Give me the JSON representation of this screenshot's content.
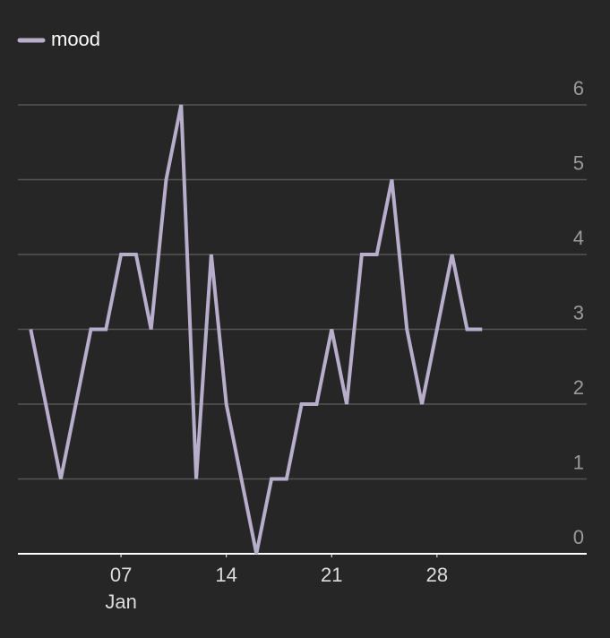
{
  "chart_data": {
    "type": "line",
    "x": [
      1,
      2,
      3,
      4,
      5,
      6,
      7,
      8,
      9,
      10,
      11,
      12,
      13,
      14,
      15,
      16,
      17,
      18,
      19,
      20,
      21,
      22,
      23,
      24,
      25,
      26,
      27,
      28,
      29,
      30,
      31
    ],
    "series": [
      {
        "name": "mood",
        "color": "#b6aecb",
        "values": [
          3,
          2,
          1,
          2,
          3,
          3,
          4,
          4,
          3,
          5,
          6,
          1,
          4,
          2,
          1,
          0,
          1,
          1,
          2,
          2,
          3,
          2,
          4,
          4,
          5,
          3,
          2,
          3,
          4,
          3,
          3
        ]
      }
    ],
    "xlim": [
      0.15,
      37.95
    ],
    "xticks": [
      {
        "value": 7,
        "label": "07"
      },
      14,
      21,
      28
    ],
    "month_label": "Jan",
    "ylim": [
      0,
      6
    ],
    "yticks": [
      0,
      1,
      2,
      3,
      4,
      5,
      6
    ],
    "grid": true,
    "legend": "top-left"
  }
}
